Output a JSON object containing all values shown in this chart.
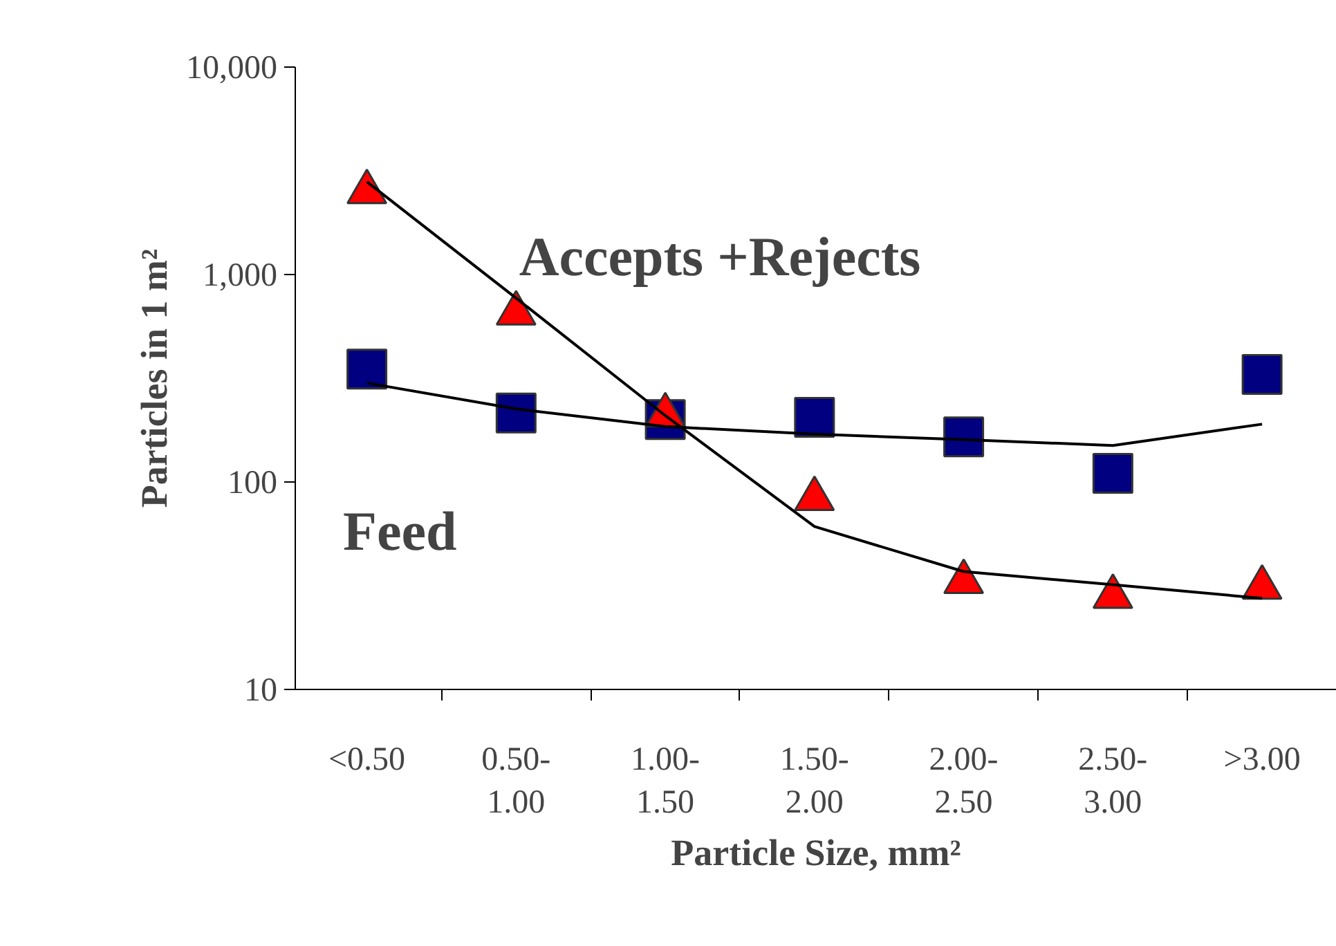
{
  "chart_data": {
    "type": "scatter",
    "ylabel": "Particles in 1 m²",
    "xlabel": "Particle Size, mm²",
    "categories": [
      "<0.50",
      "0.50-1.00",
      "1.00-1.50",
      "1.50-2.00",
      "2.00-2.50",
      "2.50-3.00",
      ">3.00"
    ],
    "log": "y",
    "ylim": [
      10,
      10000
    ],
    "yticks": [
      10,
      100,
      {
        "value": 1000,
        "label": "1,000"
      },
      {
        "value": 10000,
        "label": "10,000"
      }
    ],
    "grid": false,
    "series": [
      {
        "marker": "square",
        "color": "#000080",
        "values": [
          350,
          215,
          200,
          205,
          165,
          110,
          330
        ]
      },
      {
        "marker": "triangle",
        "color": "#ff0000",
        "values": [
          2500,
          650,
          210,
          83,
          33,
          28,
          31
        ]
      },
      {
        "type": "line",
        "color": "#000000",
        "values": [
          300,
          225,
          185,
          170,
          160,
          150,
          190
        ]
      },
      {
        "type": "line",
        "color": "#000000",
        "values": [
          2800,
          770,
          209,
          61,
          37,
          32,
          27.5
        ]
      }
    ],
    "annotations": [
      "Accepts +Rejects",
      "Feed"
    ]
  }
}
